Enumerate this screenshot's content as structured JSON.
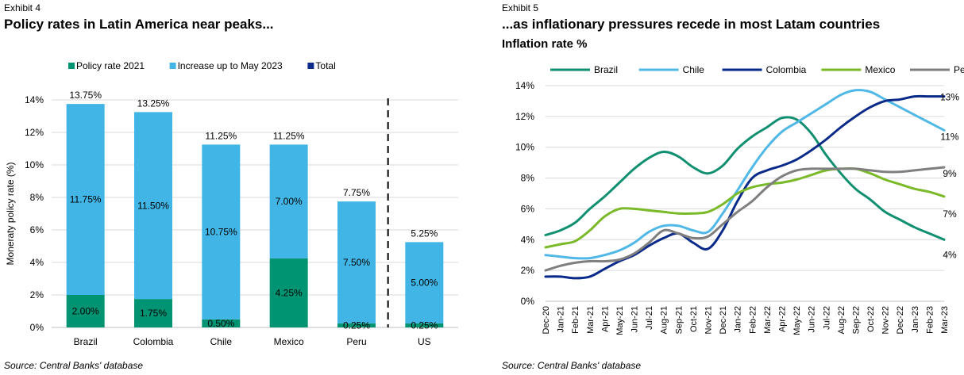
{
  "left": {
    "exhibit": "Exhibit 4",
    "title": "Policy rates in Latin America near peaks...",
    "source": "Source: Central Banks' database"
  },
  "right": {
    "exhibit": "Exhibit 5",
    "title": "...as inflationary pressures recede in most Latam countries",
    "subtitle": "Inflation rate %",
    "source": "Source: Central Banks' database"
  },
  "chart_data": [
    {
      "type": "bar",
      "stacked": true,
      "title": "Policy rates in Latin America near peaks...",
      "ylabel": "Moneraty policy rate (%)",
      "ylim": [
        0,
        14
      ],
      "yticks": [
        "0%",
        "2%",
        "4%",
        "6%",
        "8%",
        "10%",
        "12%",
        "14%"
      ],
      "grid": true,
      "legend_position": "top",
      "categories": [
        "Brazil",
        "Colombia",
        "Chile",
        "Mexico",
        "Peru",
        "US"
      ],
      "series": [
        {
          "name": "Policy rate 2021",
          "color": "#009473",
          "values": [
            2.0,
            1.75,
            0.5,
            4.25,
            0.25,
            0.25
          ],
          "labels": [
            "2.00%",
            "1.75%",
            "0.50%",
            "4.25%",
            "0.25%",
            "0.25%"
          ]
        },
        {
          "name": "Increase up to May 2023",
          "color": "#41b6e6",
          "values": [
            11.75,
            11.5,
            10.75,
            7.0,
            7.5,
            5.0
          ],
          "labels": [
            "11.75%",
            "11.50%",
            "10.75%",
            "7.00%",
            "7.50%",
            "5.00%"
          ]
        },
        {
          "name": "Total",
          "color": "#0c2b8c",
          "values": [
            13.75,
            13.25,
            11.25,
            11.25,
            7.75,
            5.25
          ],
          "labels": [
            "13.75%",
            "13.25%",
            "11.25%",
            "11.25%",
            "7.75%",
            "5.25%"
          ]
        }
      ],
      "separator_before": "US"
    },
    {
      "type": "line",
      "title": "...as inflationary pressures recede in most Latam countries",
      "subtitle": "Inflation rate %",
      "ylim": [
        0,
        14
      ],
      "yticks": [
        "0%",
        "2%",
        "4%",
        "6%",
        "8%",
        "10%",
        "12%",
        "14%"
      ],
      "grid": true,
      "legend_position": "top",
      "x": [
        "Dec-20",
        "Jan-21",
        "Feb-21",
        "Mar-21",
        "Apr-21",
        "May-21",
        "Jun-21",
        "Jul-21",
        "Aug-21",
        "Sep-21",
        "Oct-21",
        "Nov-21",
        "Dec-21",
        "Jan-22",
        "Feb-22",
        "Mar-22",
        "Apr-22",
        "May-22",
        "Jun-22",
        "Jul-22",
        "Aug-22",
        "Sep-22",
        "Oct-22",
        "Nov-22",
        "Dec-22",
        "Jan-23",
        "Feb-23",
        "Mar-23"
      ],
      "series": [
        {
          "name": "Brazil",
          "color": "#109070",
          "end_label": "4%",
          "values": [
            4.3,
            4.6,
            5.1,
            6.0,
            6.8,
            7.7,
            8.6,
            9.3,
            9.7,
            9.4,
            8.7,
            8.3,
            8.8,
            9.9,
            10.7,
            11.3,
            11.9,
            11.8,
            10.9,
            9.5,
            8.3,
            7.3,
            6.6,
            5.8,
            5.3,
            4.8,
            4.4,
            4.0
          ]
        },
        {
          "name": "Chile",
          "color": "#50b8e6",
          "end_label": "11%",
          "values": [
            3.0,
            2.9,
            2.8,
            2.8,
            3.0,
            3.3,
            3.8,
            4.5,
            4.9,
            4.9,
            4.6,
            4.5,
            5.7,
            7.2,
            8.7,
            10.0,
            11.0,
            11.6,
            12.2,
            12.8,
            13.4,
            13.7,
            13.6,
            13.1,
            12.6,
            12.1,
            11.6,
            11.1
          ]
        },
        {
          "name": "Colombia",
          "color": "#0a2a8a",
          "end_label": "13%",
          "values": [
            1.6,
            1.6,
            1.5,
            1.6,
            2.1,
            2.6,
            3.0,
            3.6,
            4.1,
            4.4,
            3.8,
            3.4,
            4.6,
            6.5,
            8.0,
            8.5,
            8.8,
            9.2,
            9.8,
            10.5,
            11.3,
            12.0,
            12.6,
            13.0,
            13.1,
            13.3,
            13.3,
            13.3
          ]
        },
        {
          "name": "Mexico",
          "color": "#7ab928",
          "end_label": "7%",
          "values": [
            3.5,
            3.7,
            3.9,
            4.6,
            5.5,
            6.0,
            6.0,
            5.9,
            5.8,
            5.7,
            5.7,
            5.8,
            6.3,
            7.0,
            7.4,
            7.6,
            7.7,
            7.9,
            8.2,
            8.5,
            8.6,
            8.6,
            8.3,
            7.9,
            7.6,
            7.3,
            7.1,
            6.8
          ]
        },
        {
          "name": "Peru",
          "color": "#7f7f7f",
          "end_label": "9%",
          "values": [
            2.0,
            2.3,
            2.5,
            2.6,
            2.6,
            2.7,
            3.1,
            3.8,
            4.6,
            4.4,
            4.1,
            4.2,
            5.0,
            5.8,
            6.5,
            7.4,
            8.1,
            8.5,
            8.6,
            8.6,
            8.6,
            8.6,
            8.5,
            8.4,
            8.4,
            8.5,
            8.6,
            8.7
          ]
        }
      ]
    }
  ]
}
